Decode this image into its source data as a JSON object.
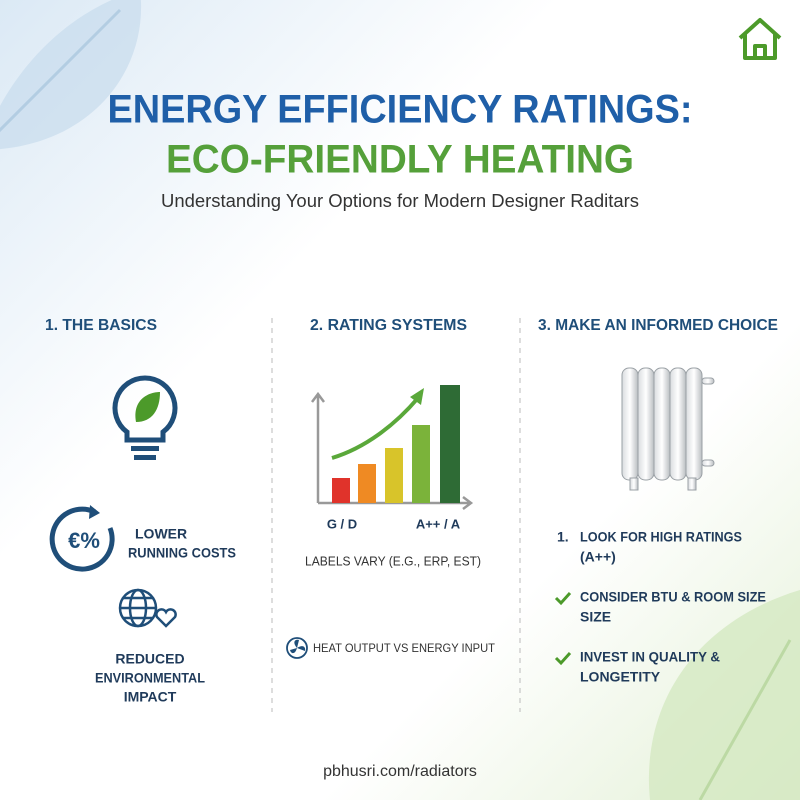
{
  "header": {
    "title_line1": "ENERGY EFFICIENCY RATINGS:",
    "title_line2": "ECO-FRIENDLY HEATING",
    "subtitle": "Understanding Your Options for Modern Designer Raditars"
  },
  "columns": [
    {
      "heading": "1. THE BASICS",
      "items": [
        {
          "icon_text": "€%",
          "lines": [
            "LOWER",
            "RUNNING COSTS"
          ]
        },
        {
          "lines": [
            "REDUCED",
            "ENVIRONMENTAL",
            "IMPACT"
          ]
        }
      ]
    },
    {
      "heading": "2. RATING SYSTEMS",
      "axis_labels": [
        "G / D",
        "A++ / A"
      ],
      "note": "LABELS VARY (E.G., ERP, EST)",
      "footnote": "HEAT OUTPUT VS ENERGY INPUT"
    },
    {
      "heading": "3. MAKE AN INFORMED CHOICE",
      "items": [
        {
          "marker": "1.",
          "lines": [
            "LOOK FOR HIGH RATINGS",
            "(A++)"
          ]
        },
        {
          "lines": [
            "CONSIDER BTU & ROOM SIZE",
            "SIZE"
          ]
        },
        {
          "lines": [
            "INVEST IN QUALITY &",
            "LONGETITY"
          ]
        }
      ]
    }
  ],
  "footer": {
    "url": "pbhusri.com/radiators"
  }
}
